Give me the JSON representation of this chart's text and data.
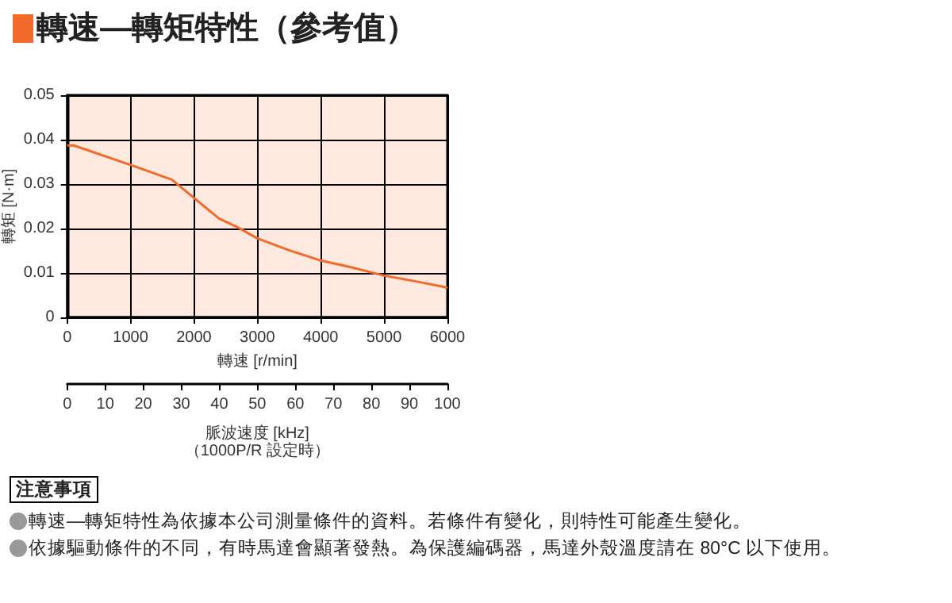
{
  "chart_data": {
    "type": "line",
    "title": "轉速—轉矩特性（參考值）",
    "xlabel": "轉速 [r/min]",
    "ylabel": "轉矩 [N·m]",
    "x2label": "脈波速度 [kHz]\n（1000P/R 設定時）",
    "x": [
      0,
      100,
      1000,
      1650,
      2000,
      2400,
      2700,
      3000,
      3500,
      4000,
      4500,
      5000,
      5500,
      6000
    ],
    "series": [
      {
        "color": "#f26b2a",
        "values": [
          0.0387,
          0.0387,
          0.0343,
          0.031,
          0.0269,
          0.0222,
          0.0202,
          0.0178,
          0.0151,
          0.0128,
          0.0112,
          0.0094,
          0.0081,
          0.0067
        ]
      }
    ],
    "xlim": [
      0,
      6000
    ],
    "xticks": [
      0,
      1000,
      2000,
      3000,
      4000,
      5000,
      6000
    ],
    "ylim": [
      0,
      0.05
    ],
    "yticks": [
      0,
      0.01,
      0.02,
      0.03,
      0.04,
      0.05
    ],
    "x2lim": [
      0,
      100
    ],
    "x2ticks": [
      0,
      10,
      20,
      30,
      40,
      50,
      60,
      70,
      80,
      90,
      100
    ],
    "grid": true,
    "marker": "none",
    "line_style": "solid",
    "annotations": [
      "注意事項",
      "轉速—轉矩特性為依據本公司測量條件的資料。若條件有變化，則特性可能產生變化。",
      "依據驅動條件的不同，有時馬達會顯著發熱。為保護編碼器，馬達外殼溫度請在 80°C 以下使用。"
    ]
  }
}
